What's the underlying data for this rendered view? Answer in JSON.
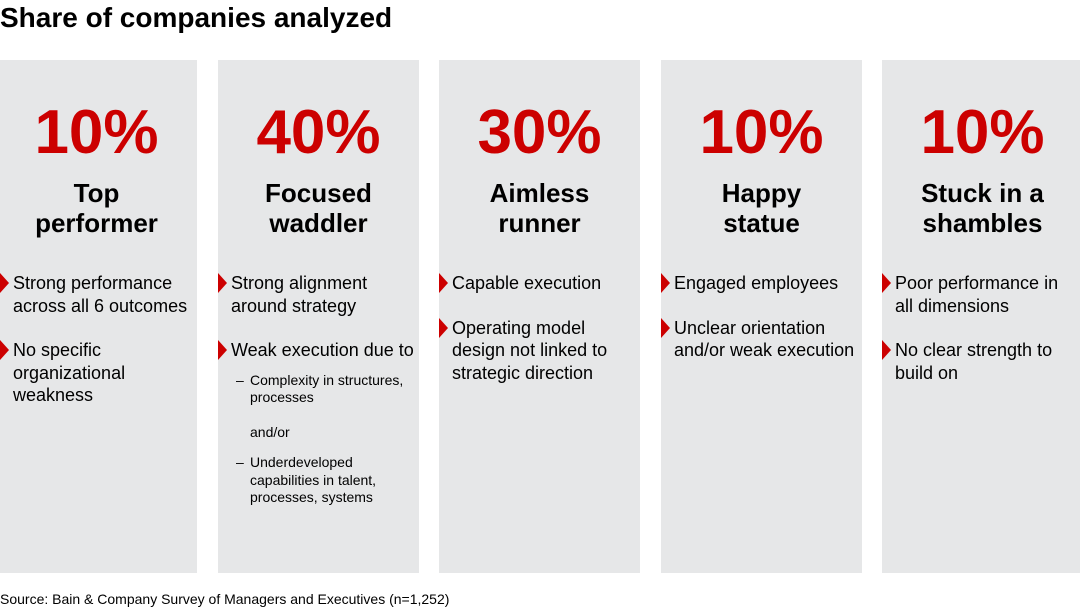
{
  "title": "Share of companies analyzed",
  "colors": {
    "accent": "#cc0000",
    "panel": "#e6e7e8"
  },
  "cards": [
    {
      "percent": "10%",
      "name": "Top\nperformer",
      "bullets": [
        "Strong performance across all 6 outcomes",
        "No specific organizational weakness"
      ]
    },
    {
      "percent": "40%",
      "name": "Focused\nwaddler",
      "bullets": [
        "Strong alignment around strategy",
        "Weak execution due to"
      ],
      "subitems": [
        "Complexity in structures, processes",
        "Underdeveloped capabilities in talent, processes, systems"
      ],
      "connector": "and/or"
    },
    {
      "percent": "30%",
      "name": "Aimless\nrunner",
      "bullets": [
        "Capable execution",
        "Operating model design not linked to strategic direction"
      ]
    },
    {
      "percent": "10%",
      "name": "Happy\nstatue",
      "bullets": [
        "Engaged employees",
        "Unclear orientation and/or weak execution"
      ]
    },
    {
      "percent": "10%",
      "name": "Stuck in a\nshambles",
      "bullets": [
        "Poor performance in all dimensions",
        "No clear strength to build on"
      ]
    }
  ],
  "source": "Source: Bain & Company Survey of Managers and Executives (n=1,252)"
}
